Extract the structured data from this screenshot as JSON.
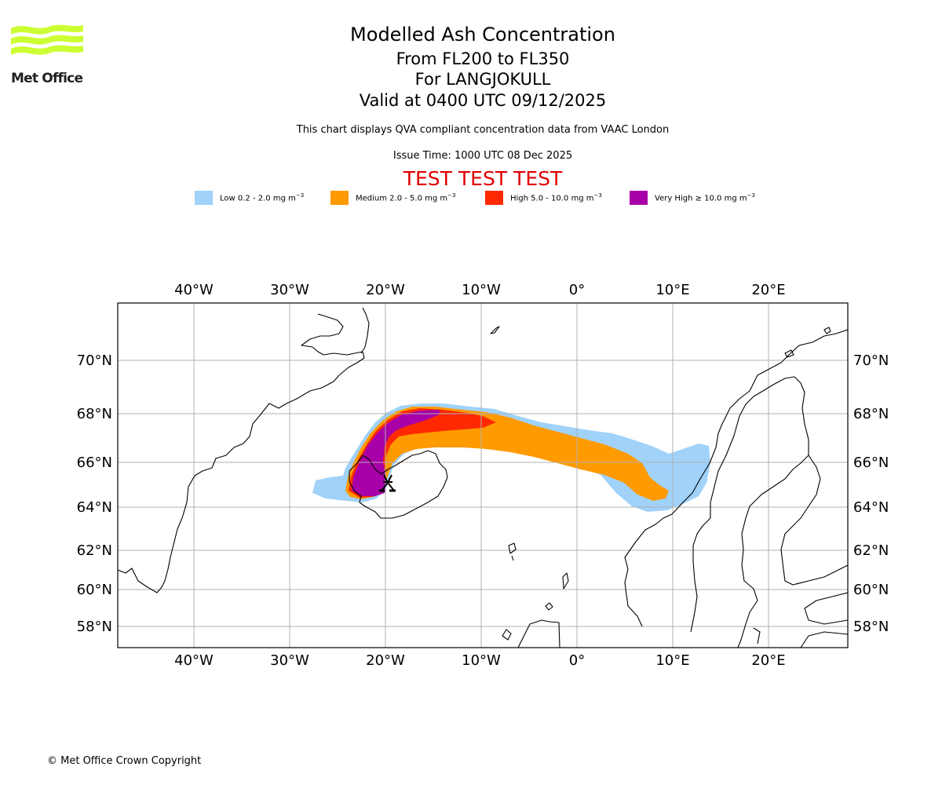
{
  "logo": {
    "text": "Met Office",
    "icon": "met-office-wave-logo",
    "color": "#ccff33"
  },
  "header": {
    "title": "Modelled Ash Concentration",
    "flight_levels": "From FL200 to FL350",
    "volcano": "For LANGJOKULL",
    "valid_time": "Valid at 0400 UTC 09/12/2025",
    "description": "This chart displays QVA compliant concentration data from VAAC London",
    "issue_time": "Issue Time: 1000 UTC 08 Dec 2025",
    "test_banner": "TEST TEST TEST"
  },
  "legend": [
    {
      "label": "Low 0.2 - 2.0 mg m",
      "unit_exp": "−3",
      "color": "#a0d2fa"
    },
    {
      "label": "Medium 2.0 - 5.0 mg m",
      "unit_exp": "−3",
      "color": "#ff9a00"
    },
    {
      "label": "High 5.0 - 10.0 mg m",
      "unit_exp": "−3",
      "color": "#ff2800"
    },
    {
      "label": "Very High ≥ 10.0 mg m",
      "unit_exp": "−3",
      "color": "#a800a8"
    }
  ],
  "chart_data": {
    "type": "heatmap",
    "title": "Modelled Ash Concentration",
    "subtitle": "From FL200 to FL350 For LANGJOKULL, Valid at 0400 UTC 09/12/2025",
    "projection": "lat-lon map",
    "lon_range": [
      -48,
      28
    ],
    "lat_range": [
      57,
      72
    ],
    "grid": true,
    "x_ticks": [
      "40°W",
      "30°W",
      "20°W",
      "10°W",
      "0°",
      "10°E",
      "20°E"
    ],
    "x_tick_values": [
      -40,
      -30,
      -20,
      -10,
      0,
      10,
      20
    ],
    "y_ticks": [
      "70°N",
      "68°N",
      "66°N",
      "64°N",
      "62°N",
      "60°N",
      "58°N"
    ],
    "y_tick_values": [
      70,
      68,
      66,
      64,
      62,
      60,
      58
    ],
    "source_volcano": {
      "name": "LANGJOKULL",
      "lon": -20.2,
      "lat": 64.7
    },
    "levels": [
      {
        "name": "Low",
        "range_mg_m3": [
          0.2,
          2.0
        ],
        "color": "#a0d2fa",
        "extent": "From ~27W 65N west of Iceland arcing north over NW Iceland to ~67.9N and east to the Norwegian coast ~13E 65N"
      },
      {
        "name": "Medium",
        "range_mg_m3": [
          2.0,
          5.0
        ],
        "color": "#ff9a00",
        "extent": "Core of plume from west Iceland ~24W 64.5N to ~10E 64.5N off Norway"
      },
      {
        "name": "High",
        "range_mg_m3": [
          5.0,
          10.0
        ],
        "color": "#ff2800",
        "extent": "Over west/north Iceland to ~10W 67.3N"
      },
      {
        "name": "Very High",
        "range_mg_m3": [
          10.0,
          null
        ],
        "color": "#a800a8",
        "extent": "Over west Iceland ~23W-20W, 64.5N-67.8N and north to ~15W 67.8N"
      }
    ],
    "legend_position": "top-center"
  },
  "footer": {
    "copyright": "© Met Office Crown Copyright"
  }
}
